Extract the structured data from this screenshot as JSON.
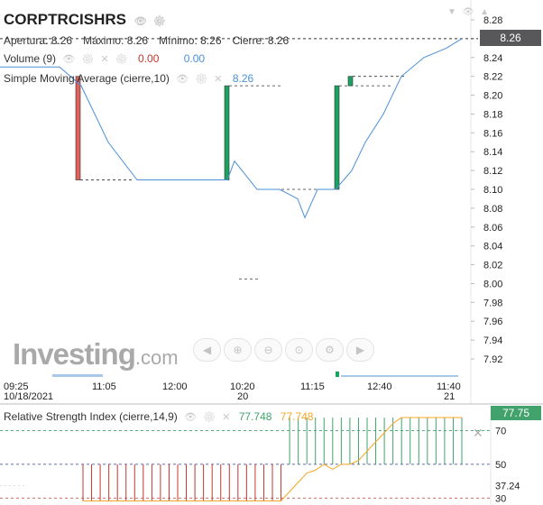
{
  "header": {
    "symbol": "CORPTRCISHRS",
    "apertura": "Apertura: 8.26",
    "maximo": "Máximo: 8.26",
    "minimo": "Mínimo: 8.26",
    "cierre": "Cierre: 8.26"
  },
  "indicators": {
    "volume_label": "Volume (9)",
    "volume_value_1": "0.00",
    "volume_value_2": "0.00",
    "sma_label": "Simple Moving Average (cierre,10)",
    "sma_value": "8.26"
  },
  "rsi": {
    "label": "Relative Strength Index (cierre,14,9)",
    "value_1": "77.748",
    "value_2": "77.748",
    "badge": "77.75"
  },
  "last_price": "8.26",
  "logo": {
    "word": "Investing",
    "suffix": ".com"
  },
  "nav_icons": [
    "left-arrow-icon",
    "zoom-in-icon",
    "zoom-out-icon",
    "zoom-reset-icon",
    "settings-icon",
    "right-arrow-icon"
  ],
  "colors": {
    "up": "#1aa260",
    "down": "#e0605a",
    "sma": "#4a90d9",
    "rsi_signal": "#f5a623",
    "rsi_up": "#41a36b",
    "rsi_down": "#c0392b"
  },
  "chart_data": [
    {
      "type": "candlestick",
      "title": "CORPTRCISHRS",
      "y_ticks": [
        "8.28",
        "8.26",
        "8.24",
        "8.22",
        "8.20",
        "8.18",
        "8.16",
        "8.14",
        "8.12",
        "8.10",
        "8.08",
        "8.06",
        "8.04",
        "8.02",
        "8.00",
        "7.98",
        "7.96",
        "7.94",
        "7.92"
      ],
      "ylim": [
        7.9,
        8.29
      ],
      "x_ticks": [
        {
          "label": "09:25",
          "sub": "10/18/2021"
        },
        {
          "label": "11:05",
          "sub": ""
        },
        {
          "label": "12:00",
          "sub": ""
        },
        {
          "label": "10:20",
          "sub": "20"
        },
        {
          "label": "11:15",
          "sub": ""
        },
        {
          "label": "12:40",
          "sub": ""
        },
        {
          "label": "11:40",
          "sub": "21"
        }
      ],
      "candles": [
        {
          "open": 8.22,
          "high": 8.22,
          "low": 8.11,
          "close": 8.11,
          "direction": "down"
        },
        {
          "open": 8.11,
          "high": 8.21,
          "low": 8.11,
          "close": 8.21,
          "direction": "up"
        },
        {
          "open": 8.1,
          "high": 8.21,
          "low": 8.1,
          "close": 8.21,
          "direction": "up"
        },
        {
          "open": 8.21,
          "high": 8.22,
          "low": 8.21,
          "close": 8.22,
          "direction": "up"
        }
      ],
      "sma": [
        8.23,
        8.23,
        8.21,
        8.15,
        8.11,
        8.11,
        8.11,
        8.11,
        8.13,
        8.1,
        8.1,
        8.09,
        8.07,
        8.1,
        8.1,
        8.12,
        8.15,
        8.18,
        8.22,
        8.24,
        8.25,
        8.26
      ],
      "last_price": 8.26
    },
    {
      "type": "bar",
      "title": "Relative Strength Index (cierre,14,9)",
      "y_ticks": [
        "70",
        "50",
        "37.24",
        "30"
      ],
      "ylim": [
        28,
        82
      ],
      "levels": [
        70,
        50,
        30
      ],
      "rsi_values": [
        28.3,
        28.3,
        28.3,
        28.3,
        28.3,
        28.3,
        28.3,
        28.3,
        28.3,
        28.3,
        28.3,
        28.3,
        28.3,
        28.3,
        28.3,
        28.3,
        28.3,
        28.3,
        28.3,
        28.3,
        28.3,
        28.3,
        28.3,
        28.3,
        77.7,
        77.7,
        77.7,
        77.7,
        77.7,
        77.7,
        77.7,
        77.7,
        77.7,
        77.7,
        77.7,
        77.7,
        77.7,
        77.7,
        77.7,
        77.7,
        77.7,
        77.7,
        77.7,
        77.7,
        77.7
      ],
      "signal_values": [
        28.3,
        28.3,
        28.3,
        28.3,
        28.3,
        28.3,
        28.3,
        28.3,
        28.3,
        28.3,
        28.3,
        28.3,
        28.3,
        28.3,
        28.3,
        28.3,
        28.3,
        28.3,
        28.3,
        28.3,
        28.3,
        28.3,
        28.3,
        28.3,
        33.8,
        39.3,
        44.8,
        46.5,
        50.0,
        47.0,
        50.0,
        50.0,
        52.3,
        57.8,
        63.3,
        68.7,
        74.2,
        77.7,
        77.7,
        77.7,
        77.7,
        77.7,
        77.7,
        77.7,
        77.7
      ]
    }
  ]
}
